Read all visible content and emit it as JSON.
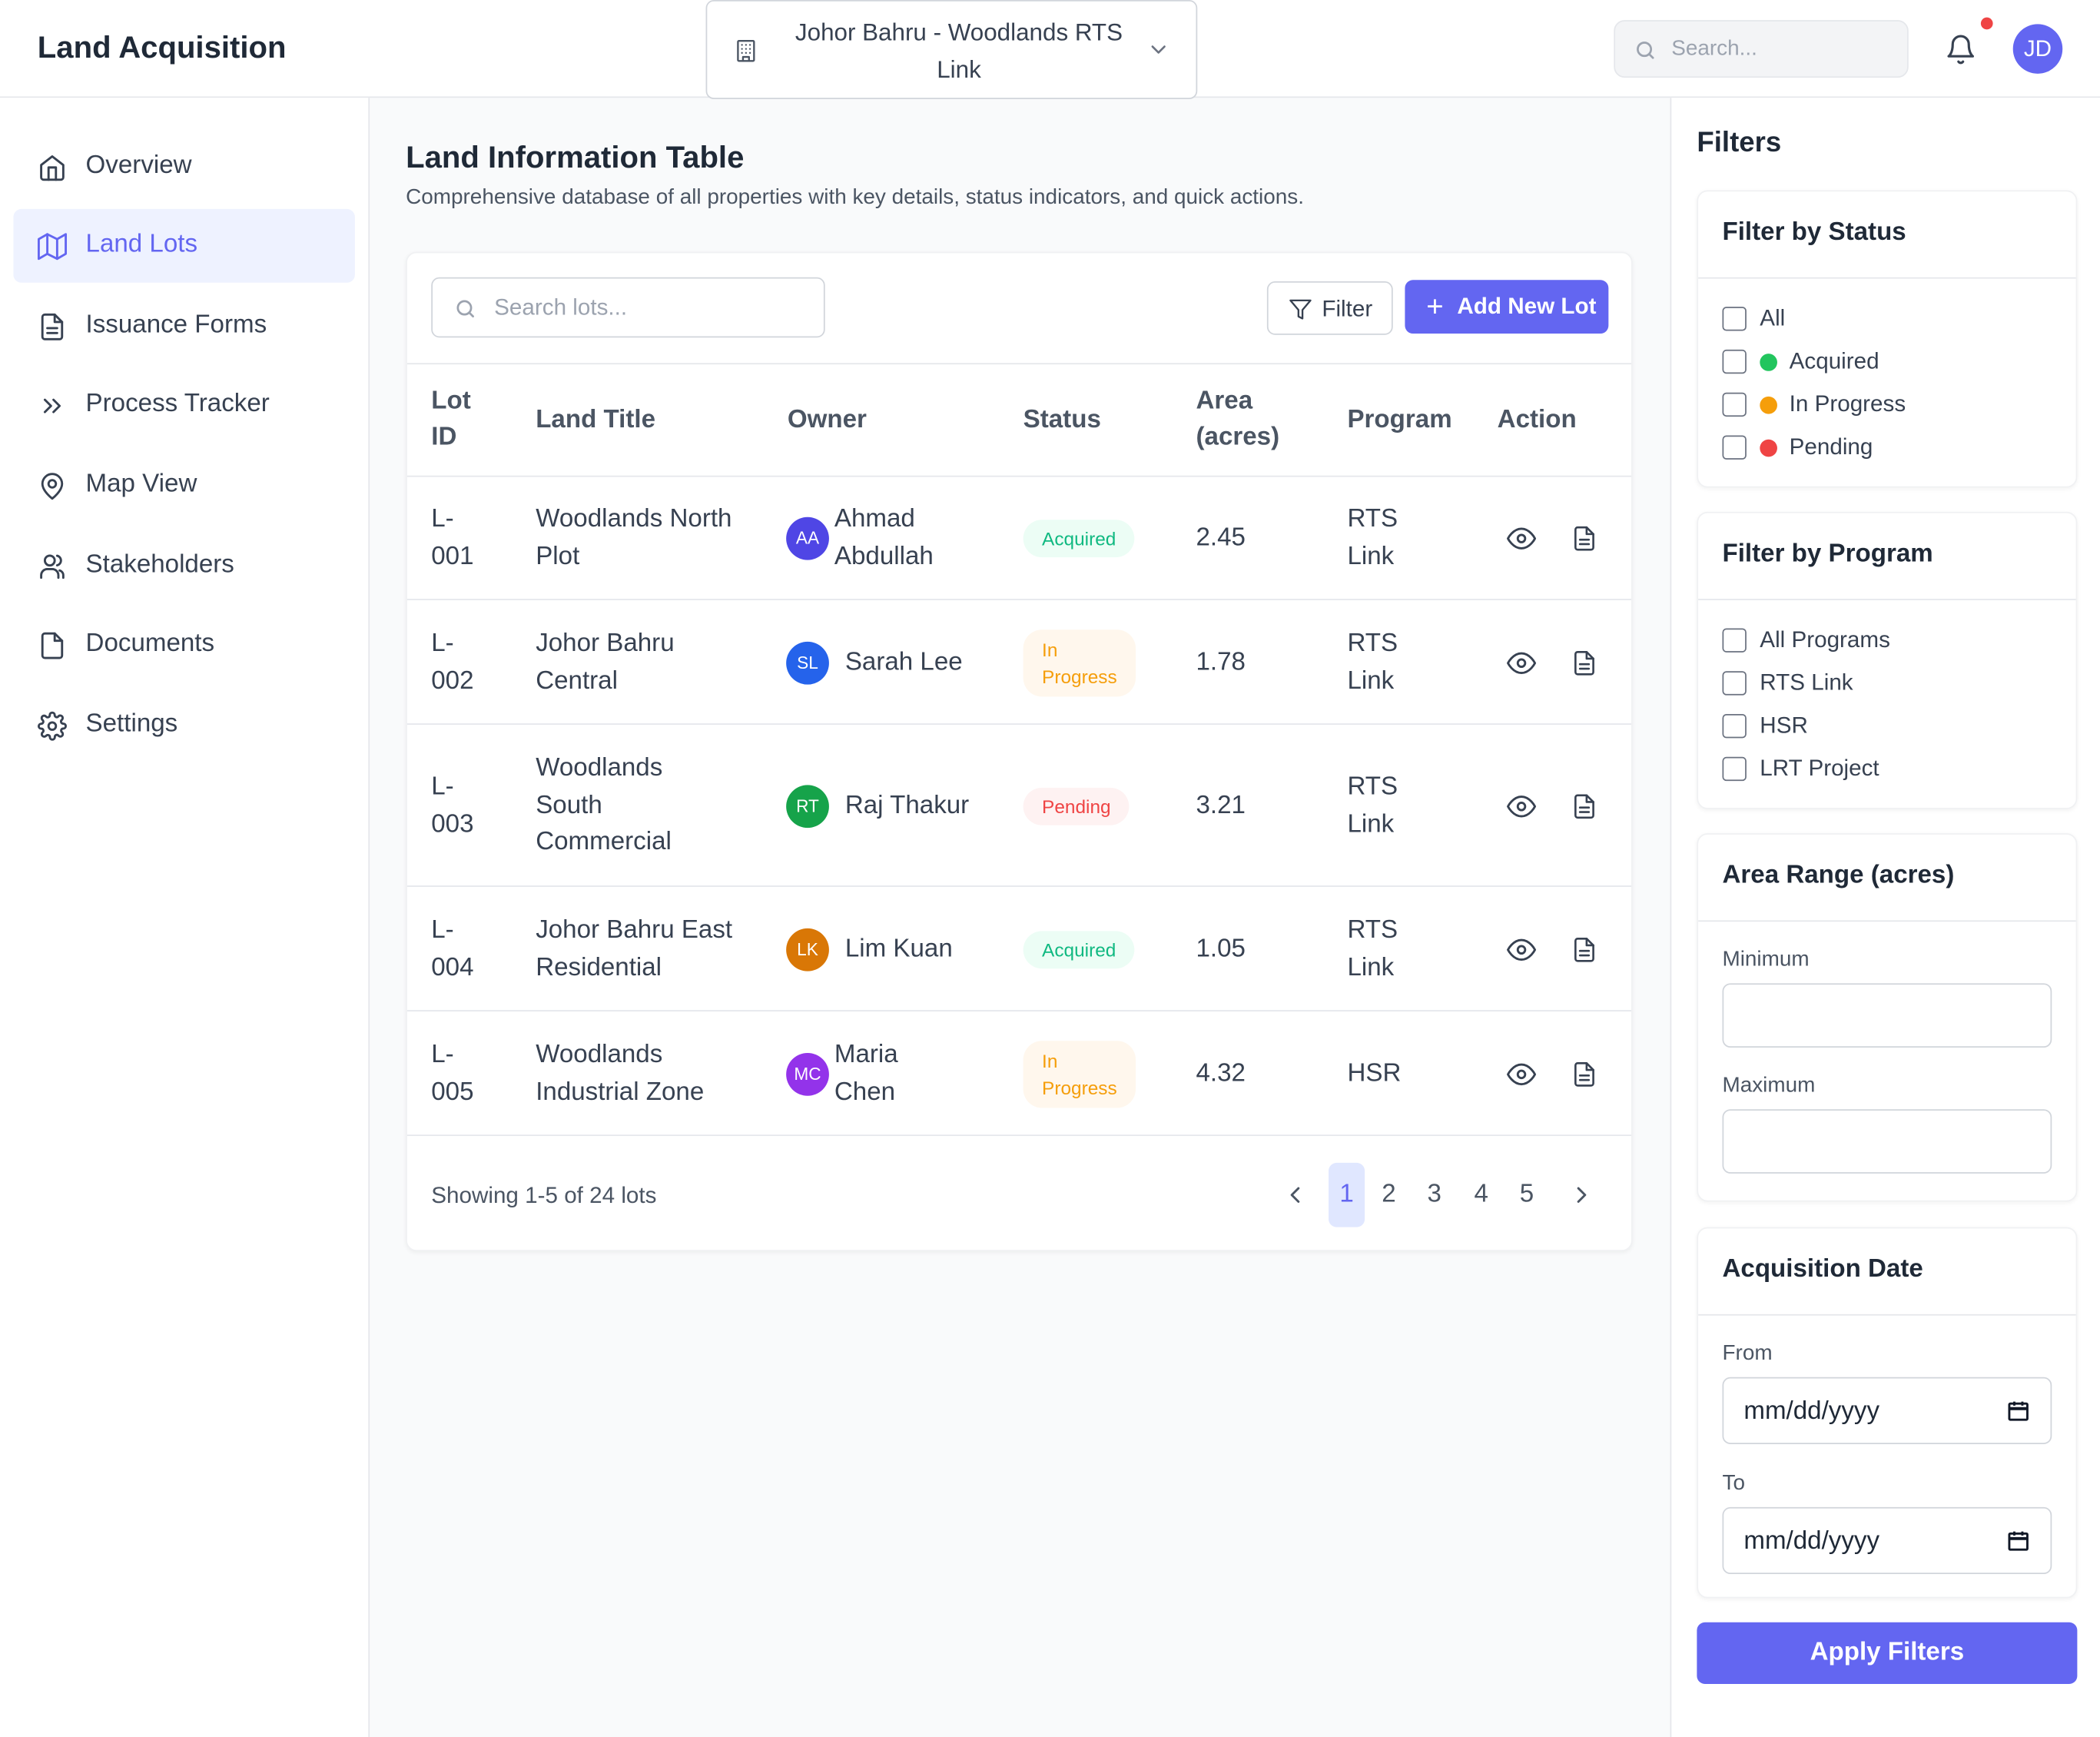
{
  "header": {
    "app_title": "Land Acquisition",
    "project": "Johor Bahru - Woodlands RTS Link",
    "search_placeholder": "Search...",
    "user_initials": "JD"
  },
  "sidebar": {
    "items": [
      {
        "label": "Overview",
        "icon": "home-icon"
      },
      {
        "label": "Land Lots",
        "icon": "map-icon",
        "active": true
      },
      {
        "label": "Issuance Forms",
        "icon": "document-icon"
      },
      {
        "label": "Process Tracker",
        "icon": "chevrons-right-icon"
      },
      {
        "label": "Map View",
        "icon": "map-pin-icon"
      },
      {
        "label": "Stakeholders",
        "icon": "users-icon"
      },
      {
        "label": "Documents",
        "icon": "file-icon"
      },
      {
        "label": "Settings",
        "icon": "gear-icon"
      }
    ]
  },
  "main": {
    "title": "Land Information Table",
    "subtitle": "Comprehensive database of all properties with key details, status indicators, and quick actions.",
    "search_placeholder": "Search lots...",
    "filter_label": "Filter",
    "add_label": "Add New Lot",
    "columns": {
      "lot_id": [
        "Lot",
        "ID"
      ],
      "land_title": "Land Title",
      "owner": "Owner",
      "status": "Status",
      "area": [
        "Area",
        "(acres)"
      ],
      "program": "Program",
      "action": "Action"
    },
    "rows": [
      {
        "id": [
          "L-",
          "001"
        ],
        "title": [
          "Woodlands North",
          "Plot"
        ],
        "initials": "AA",
        "avatar_color": "#4f46e5",
        "owner": [
          "Ahmad",
          "Abdullah"
        ],
        "status": [
          "Acquired"
        ],
        "status_kind": "acquired",
        "area": "2.45",
        "program": [
          "RTS",
          "Link"
        ]
      },
      {
        "id": [
          "L-",
          "002"
        ],
        "title": [
          "Johor Bahru",
          "Central"
        ],
        "initials": "SL",
        "avatar_color": "#2563eb",
        "owner": [
          "Sarah Lee"
        ],
        "status": [
          "In",
          "Progress"
        ],
        "status_kind": "progress",
        "area": "1.78",
        "program": [
          "RTS",
          "Link"
        ]
      },
      {
        "id": [
          "L-",
          "003"
        ],
        "title": [
          "Woodlands",
          "South",
          "Commercial"
        ],
        "initials": "RT",
        "avatar_color": "#16a34a",
        "owner": [
          "Raj Thakur"
        ],
        "status": [
          "Pending"
        ],
        "status_kind": "pending",
        "area": "3.21",
        "program": [
          "RTS",
          "Link"
        ]
      },
      {
        "id": [
          "L-",
          "004"
        ],
        "title": [
          "Johor Bahru East",
          "Residential"
        ],
        "initials": "LK",
        "avatar_color": "#d97706",
        "owner": [
          "Lim Kuan"
        ],
        "status": [
          "Acquired"
        ],
        "status_kind": "acquired",
        "area": "1.05",
        "program": [
          "RTS",
          "Link"
        ]
      },
      {
        "id": [
          "L-",
          "005"
        ],
        "title": [
          "Woodlands",
          "Industrial Zone"
        ],
        "initials": "MC",
        "avatar_color": "#9333ea",
        "owner": [
          "Maria",
          "Chen"
        ],
        "status": [
          "In",
          "Progress"
        ],
        "status_kind": "progress",
        "area": "4.32",
        "program": [
          "HSR"
        ]
      }
    ],
    "pagination": {
      "summary": "Showing 1-5 of 24 lots",
      "pages": [
        "1",
        "2",
        "3",
        "4",
        "5"
      ],
      "current": "1"
    }
  },
  "filters": {
    "title": "Filters",
    "status": {
      "title": "Filter by Status",
      "options": [
        {
          "label": "All",
          "color": ""
        },
        {
          "label": "Acquired",
          "color": "#22c55e"
        },
        {
          "label": "In Progress",
          "color": "#f59e0b"
        },
        {
          "label": "Pending",
          "color": "#ef4444"
        }
      ]
    },
    "program": {
      "title": "Filter by Program",
      "options": [
        "All Programs",
        "RTS Link",
        "HSR",
        "LRT Project"
      ]
    },
    "area": {
      "title": "Area Range (acres)",
      "min_label": "Minimum",
      "max_label": "Maximum",
      "min_value": "",
      "max_value": ""
    },
    "date": {
      "title": "Acquisition Date",
      "from_label": "From",
      "to_label": "To",
      "from_value": "mm/dd/yyyy",
      "to_value": "mm/dd/yyyy"
    },
    "apply_label": "Apply Filters"
  }
}
